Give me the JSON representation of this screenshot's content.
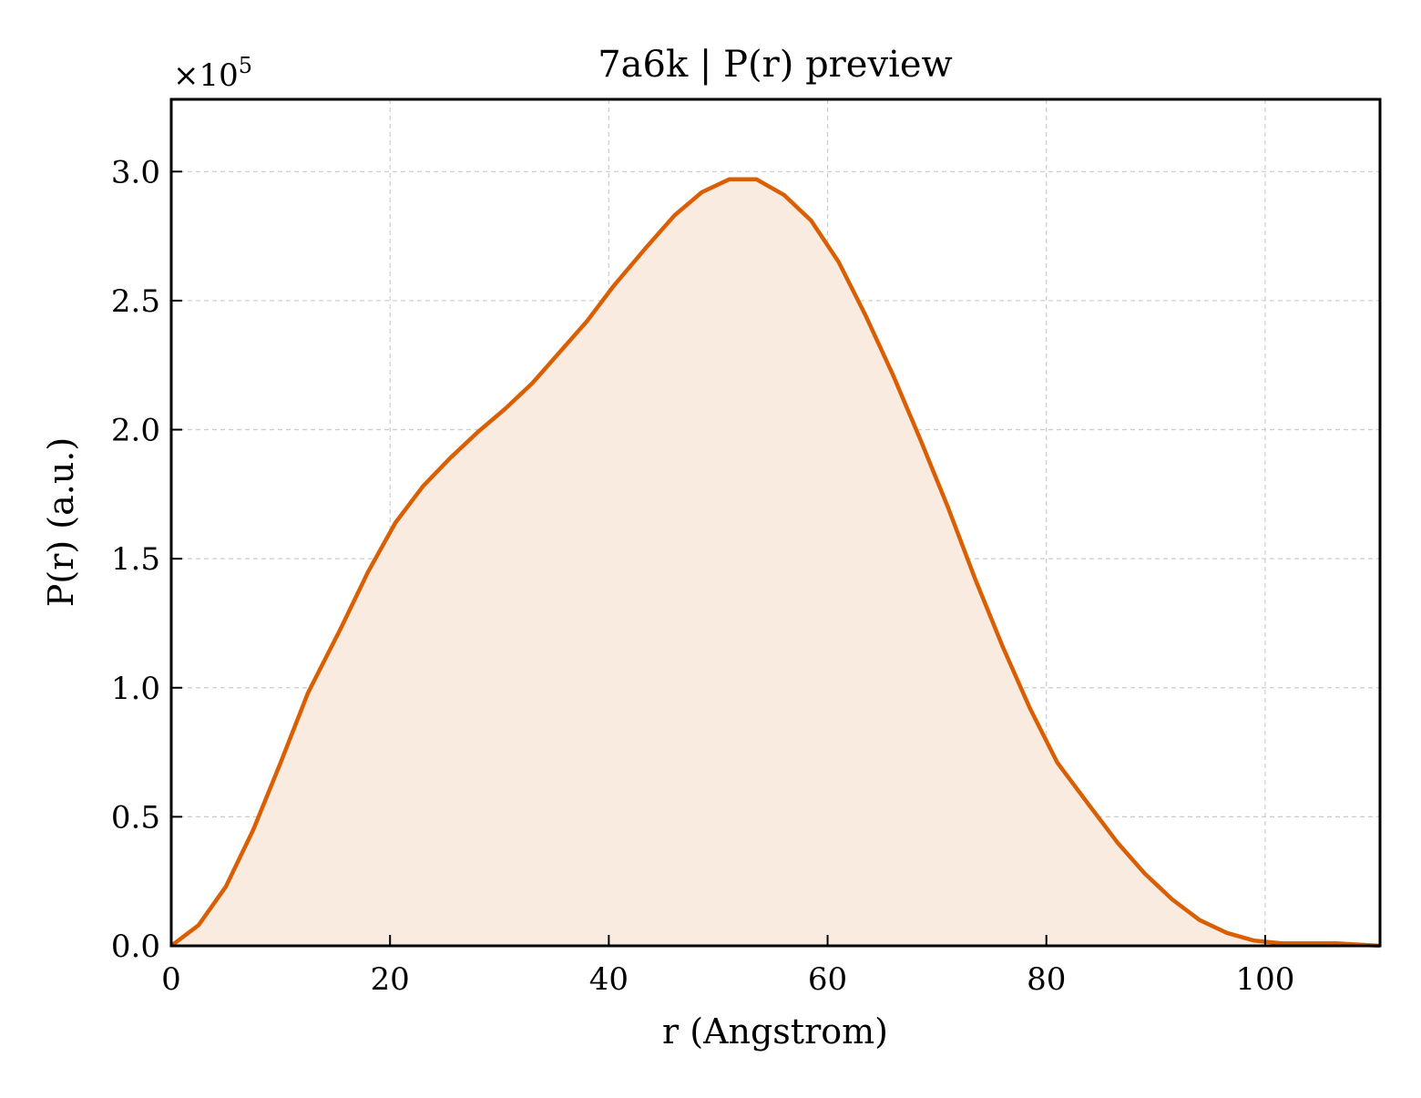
{
  "chart_data": {
    "type": "area",
    "title": "7a6k | P(r) preview",
    "xlabel": "r (Angstrom)",
    "ylabel": "P(r) (a.u.)",
    "y_multiplier": "×10",
    "y_multiplier_exp": "5",
    "xlim": [
      0,
      110.5
    ],
    "ylim": [
      0,
      3.28
    ],
    "xticks": [
      0,
      20,
      40,
      60,
      80,
      100
    ],
    "xtick_labels": [
      "0",
      "20",
      "40",
      "60",
      "80",
      "100"
    ],
    "yticks": [
      0,
      0.5,
      1.0,
      1.5,
      2.0,
      2.5,
      3.0
    ],
    "ytick_labels": [
      "0.0",
      "0.5",
      "1.0",
      "1.5",
      "2.0",
      "2.5",
      "3.0"
    ],
    "grid": true,
    "line_color": "#d95f02",
    "fill_color": "#f9ebe0",
    "x": [
      0,
      2.5,
      5.0,
      7.5,
      10.0,
      12.5,
      15.5,
      18.0,
      20.5,
      23.0,
      25.5,
      28.0,
      30.5,
      33.0,
      35.5,
      38.0,
      40.5,
      43.5,
      46.0,
      48.5,
      51.0,
      53.5,
      56.0,
      58.5,
      61.0,
      63.5,
      66.0,
      68.5,
      71.0,
      73.5,
      76.0,
      78.5,
      81.0,
      84.0,
      86.5,
      89.0,
      91.5,
      94.0,
      96.5,
      99.0,
      101.5,
      104.0,
      106.5,
      110.5
    ],
    "y": [
      0.0,
      0.08,
      0.23,
      0.45,
      0.71,
      0.98,
      1.23,
      1.45,
      1.64,
      1.78,
      1.89,
      1.99,
      2.08,
      2.18,
      2.3,
      2.42,
      2.56,
      2.71,
      2.83,
      2.92,
      2.97,
      2.97,
      2.91,
      2.81,
      2.65,
      2.44,
      2.21,
      1.96,
      1.7,
      1.42,
      1.16,
      0.92,
      0.71,
      0.54,
      0.4,
      0.28,
      0.18,
      0.1,
      0.05,
      0.02,
      0.01,
      0.01,
      0.01,
      0.0
    ]
  }
}
